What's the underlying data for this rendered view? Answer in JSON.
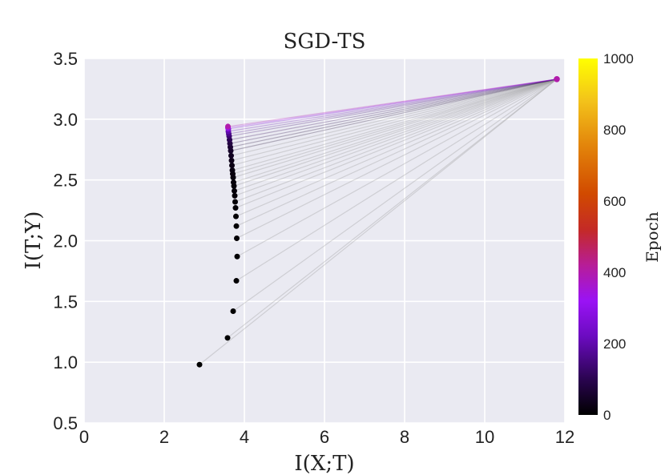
{
  "chart_data": {
    "type": "scatter",
    "title": "SGD-TS",
    "xlabel": "I(X;T)",
    "ylabel": "I(T;Y)",
    "xlim": [
      0,
      12
    ],
    "ylim": [
      0.5,
      3.5
    ],
    "xticks": [
      "0",
      "2",
      "4",
      "6",
      "8",
      "10",
      "12"
    ],
    "yticks": [
      "0.5",
      "1.0",
      "1.5",
      "2.0",
      "2.5",
      "3.0",
      "3.5"
    ],
    "grid": true,
    "background": "#eaeaf2",
    "colormap": "gnuplot",
    "colorbar": {
      "label": "Epoch",
      "range": [
        0,
        1000
      ],
      "ticks": [
        "0",
        "200",
        "400",
        "600",
        "800",
        "1000"
      ]
    },
    "first_layer_points": [
      {
        "epoch": 1,
        "x": 2.88,
        "y": 0.98
      },
      {
        "epoch": 2,
        "x": 3.58,
        "y": 1.2
      },
      {
        "epoch": 3,
        "x": 3.72,
        "y": 1.42
      },
      {
        "epoch": 4,
        "x": 3.8,
        "y": 1.67
      },
      {
        "epoch": 5,
        "x": 3.82,
        "y": 1.87
      },
      {
        "epoch": 6,
        "x": 3.81,
        "y": 2.02
      },
      {
        "epoch": 7,
        "x": 3.8,
        "y": 2.12
      },
      {
        "epoch": 8,
        "x": 3.79,
        "y": 2.2
      },
      {
        "epoch": 9,
        "x": 3.78,
        "y": 2.27
      },
      {
        "epoch": 10,
        "x": 3.77,
        "y": 2.32
      },
      {
        "epoch": 11,
        "x": 3.76,
        "y": 2.37
      },
      {
        "epoch": 12,
        "x": 3.75,
        "y": 2.41
      },
      {
        "epoch": 13,
        "x": 3.74,
        "y": 2.45
      },
      {
        "epoch": 14,
        "x": 3.73,
        "y": 2.48
      },
      {
        "epoch": 16,
        "x": 3.72,
        "y": 2.52
      },
      {
        "epoch": 18,
        "x": 3.71,
        "y": 2.55
      },
      {
        "epoch": 20,
        "x": 3.7,
        "y": 2.58
      },
      {
        "epoch": 25,
        "x": 3.69,
        "y": 2.62
      },
      {
        "epoch": 30,
        "x": 3.68,
        "y": 2.66
      },
      {
        "epoch": 40,
        "x": 3.67,
        "y": 2.7
      },
      {
        "epoch": 50,
        "x": 3.66,
        "y": 2.74
      },
      {
        "epoch": 60,
        "x": 3.65,
        "y": 2.77
      },
      {
        "epoch": 80,
        "x": 3.64,
        "y": 2.8
      },
      {
        "epoch": 100,
        "x": 3.63,
        "y": 2.83
      },
      {
        "epoch": 130,
        "x": 3.62,
        "y": 2.86
      },
      {
        "epoch": 160,
        "x": 3.61,
        "y": 2.88
      },
      {
        "epoch": 200,
        "x": 3.6,
        "y": 2.9
      },
      {
        "epoch": 260,
        "x": 3.6,
        "y": 2.92
      },
      {
        "epoch": 330,
        "x": 3.59,
        "y": 2.93
      },
      {
        "epoch": 400,
        "x": 3.59,
        "y": 2.94
      }
    ],
    "second_layer_point": {
      "epoch": 400,
      "x": 11.8,
      "y": 3.33
    }
  }
}
